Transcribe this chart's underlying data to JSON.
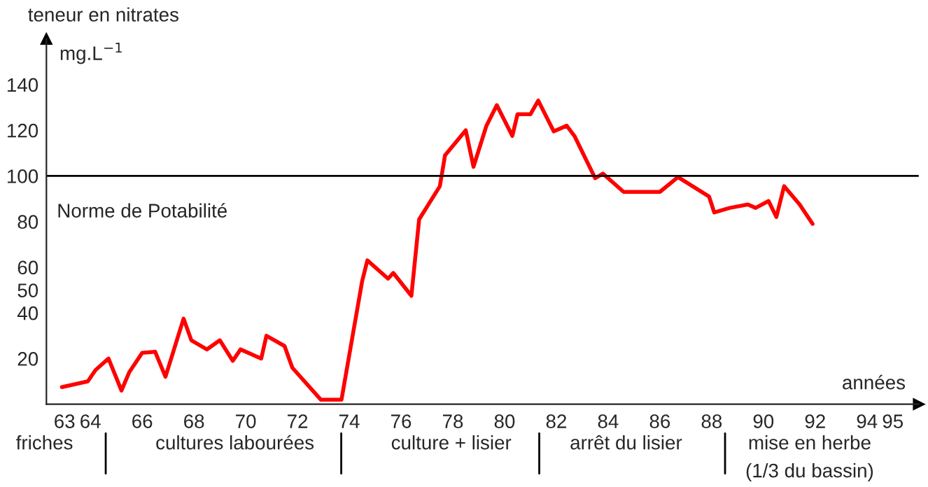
{
  "chart_data": {
    "type": "line",
    "ylabel": "teneur en nitrates",
    "xlabel": "années",
    "x": [
      62.9,
      63.9,
      64.2,
      64.7,
      65.2,
      65.5,
      66.0,
      66.5,
      66.9,
      67.6,
      67.9,
      68.5,
      69.0,
      69.5,
      69.8,
      70.6,
      70.8,
      71.5,
      71.8,
      72.9,
      73.7,
      74.5,
      74.7,
      75.5,
      75.7,
      76.4,
      76.7,
      77.5,
      77.7,
      78.5,
      78.8,
      79.3,
      79.7,
      80.3,
      80.5,
      81.0,
      81.3,
      81.9,
      82.4,
      82.7,
      83.5,
      83.8,
      84.6,
      86.0,
      86.7,
      87.9,
      88.1,
      88.7,
      89.4,
      89.7,
      90.2,
      90.5,
      90.8,
      91.4,
      91.9
    ],
    "series": [
      {
        "color": "#ff0000",
        "values": [
          7.5,
          10,
          15,
          20,
          6,
          14,
          22.5,
          23,
          12,
          37.5,
          28,
          24,
          28,
          19,
          24,
          20,
          30,
          25.5,
          16,
          2,
          2,
          54,
          63,
          55,
          57.5,
          47.5,
          81,
          95.5,
          109,
          120,
          104,
          122,
          131,
          117.5,
          127,
          127,
          133,
          119.5,
          122,
          117.5,
          99,
          101,
          93,
          93,
          99.5,
          91,
          84,
          86,
          87.5,
          86,
          89,
          82,
          95.5,
          87.5,
          79
        ]
      }
    ],
    "xlim": [
      62.3,
      96
    ],
    "ylim": [
      0,
      160
    ],
    "xticks": [
      63,
      64,
      66,
      68,
      70,
      72,
      74,
      76,
      78,
      80,
      82,
      84,
      86,
      88,
      90,
      92,
      94,
      95
    ],
    "yticks": [
      20,
      40,
      50,
      60,
      80,
      100,
      120,
      140
    ],
    "ref_lines": [
      {
        "axis": "y",
        "value": 100,
        "color": "#000000"
      }
    ],
    "annotations": [
      "mg.L$^{−1}$",
      "Norme de Potabilité",
      "friches",
      "cultures labourées",
      "culture + lisier",
      "arrêt du lisier",
      "mise en herbe\n(1/3 du bassin)"
    ],
    "grid": false,
    "marker": "none",
    "line_style": "solid"
  }
}
